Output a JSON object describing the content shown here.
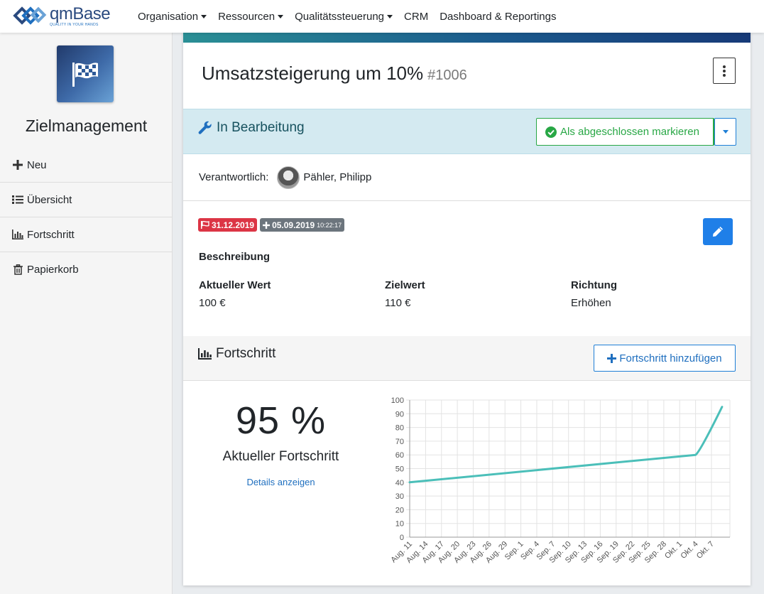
{
  "brand": {
    "name": "qmBase",
    "tagline": "QUALITY IN YOUR HANDS"
  },
  "topnav": {
    "items": [
      {
        "label": "Organisation",
        "dropdown": true
      },
      {
        "label": "Ressourcen",
        "dropdown": true
      },
      {
        "label": "Qualitätssteuerung",
        "dropdown": true
      },
      {
        "label": "CRM",
        "dropdown": false
      },
      {
        "label": "Dashboard & Reportings",
        "dropdown": false
      }
    ]
  },
  "sidebar": {
    "module_icon": "checkered-flag-icon",
    "title": "Zielmanagement",
    "items": [
      {
        "label": "Neu",
        "icon": "plus-icon"
      },
      {
        "label": "Übersicht",
        "icon": "list-icon"
      },
      {
        "label": "Fortschritt",
        "icon": "chart-bar-icon"
      },
      {
        "label": "Papierkorb",
        "icon": "trash-icon"
      }
    ]
  },
  "goal": {
    "title": "Umsatzsteigerung um 10%",
    "number": "#1006",
    "status": "In Bearbeitung",
    "complete_button": "Als abgeschlossen markieren",
    "responsible_label": "Verantwortlich:",
    "responsible_name": "Pähler, Philipp",
    "due_date": "31.12.2019",
    "created_date": "05.09.2019",
    "created_time": "10:22:17",
    "description_label": "Beschreibung",
    "current_value_label": "Aktueller Wert",
    "current_value": "100 €",
    "target_value_label": "Zielwert",
    "target_value": "110 €",
    "direction_label": "Richtung",
    "direction": "Erhöhen"
  },
  "progress": {
    "title": "Fortschritt",
    "add_button": "Fortschritt hinzufügen",
    "percent_text": "95 %",
    "percent_label": "Aktueller Fortschritt",
    "details_link": "Details anzeigen"
  },
  "colors": {
    "status_bg": "#d4eaf1",
    "success": "#28a745",
    "primary": "#1f7fe8",
    "danger": "#dc3545",
    "line": "#4bbfb9"
  },
  "chart_data": {
    "type": "line",
    "x": [
      "Aug. 11",
      "Aug. 14",
      "Aug. 17",
      "Aug. 20",
      "Aug. 23",
      "Aug. 26",
      "Aug. 29",
      "Sep. 1",
      "Sep. 4",
      "Sep. 7",
      "Sep. 10",
      "Sep. 13",
      "Sep. 16",
      "Sep. 19",
      "Sep. 22",
      "Sep. 25",
      "Sep. 28",
      "Okt. 1",
      "Okt. 4",
      "Okt. 7"
    ],
    "series": [
      {
        "values": [
          {
            "x": "Aug. 11",
            "y": 40
          },
          {
            "x": "Okt. 4",
            "y": 60
          },
          {
            "x": "Okt. 9",
            "y": 95
          }
        ]
      }
    ],
    "ylim": [
      0,
      100
    ],
    "yticks": [
      0,
      10,
      20,
      30,
      40,
      50,
      60,
      70,
      80,
      90,
      100
    ],
    "grid": true
  }
}
